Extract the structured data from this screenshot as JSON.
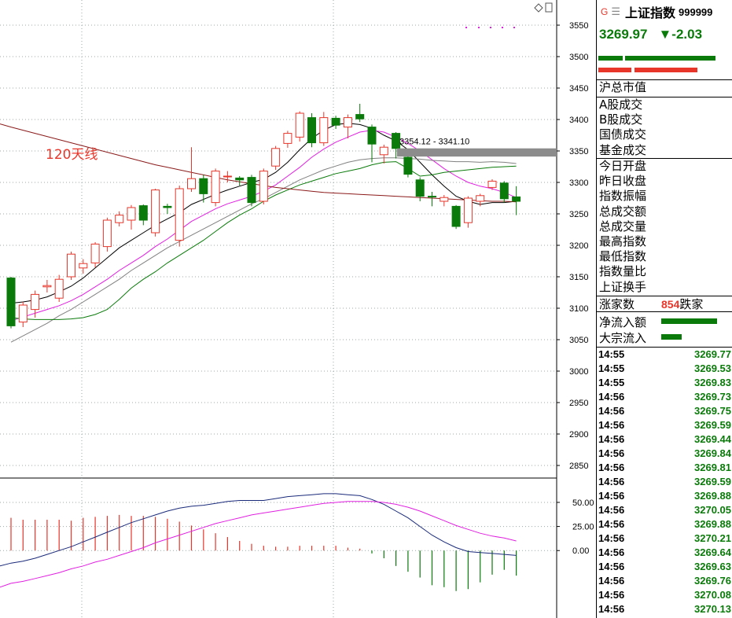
{
  "chart_data": {
    "type": "candlestick",
    "y_axis_ticks": [
      "3550",
      "3500",
      "3450",
      "3400",
      "3350",
      "3300",
      "3250",
      "3200",
      "3150",
      "3100",
      "3050",
      "3000",
      "2950",
      "2900",
      "2850"
    ],
    "ylim": [
      2830,
      3580
    ],
    "ma_label": "120天线",
    "gap_label": "3354.12 - 3341.10",
    "gap_range": [
      3341.1,
      3354.12
    ],
    "candles": [
      {
        "o": 3148,
        "c": 3072,
        "h": 3150,
        "l": 3068
      },
      {
        "o": 3078,
        "c": 3105,
        "h": 3110,
        "l": 3070
      },
      {
        "o": 3098,
        "c": 3122,
        "h": 3128,
        "l": 3085
      },
      {
        "o": 3134,
        "c": 3136,
        "h": 3145,
        "l": 3125
      },
      {
        "o": 3116,
        "c": 3146,
        "h": 3153,
        "l": 3110
      },
      {
        "o": 3150,
        "c": 3186,
        "h": 3190,
        "l": 3145
      },
      {
        "o": 3164,
        "c": 3171,
        "h": 3178,
        "l": 3155
      },
      {
        "o": 3172,
        "c": 3202,
        "h": 3205,
        "l": 3165
      },
      {
        "o": 3198,
        "c": 3240,
        "h": 3244,
        "l": 3190
      },
      {
        "o": 3236,
        "c": 3248,
        "h": 3254,
        "l": 3230
      },
      {
        "o": 3240,
        "c": 3260,
        "h": 3264,
        "l": 3225
      },
      {
        "o": 3263,
        "c": 3240,
        "h": 3265,
        "l": 3232
      },
      {
        "o": 3220,
        "c": 3288,
        "h": 3290,
        "l": 3214
      },
      {
        "o": 3262,
        "c": 3260,
        "h": 3266,
        "l": 3250
      },
      {
        "o": 3208,
        "c": 3290,
        "h": 3295,
        "l": 3198
      },
      {
        "o": 3290,
        "c": 3306,
        "h": 3356,
        "l": 3285
      },
      {
        "o": 3306,
        "c": 3282,
        "h": 3312,
        "l": 3268
      },
      {
        "o": 3268,
        "c": 3318,
        "h": 3322,
        "l": 3262
      },
      {
        "o": 3310,
        "c": 3310,
        "h": 3318,
        "l": 3300
      },
      {
        "o": 3307,
        "c": 3304,
        "h": 3310,
        "l": 3295
      },
      {
        "o": 3308,
        "c": 3268,
        "h": 3312,
        "l": 3262
      },
      {
        "o": 3270,
        "c": 3318,
        "h": 3322,
        "l": 3265
      },
      {
        "o": 3326,
        "c": 3354,
        "h": 3358,
        "l": 3320
      },
      {
        "o": 3362,
        "c": 3378,
        "h": 3382,
        "l": 3355
      },
      {
        "o": 3372,
        "c": 3410,
        "h": 3413,
        "l": 3365
      },
      {
        "o": 3403,
        "c": 3363,
        "h": 3410,
        "l": 3356
      },
      {
        "o": 3363,
        "c": 3403,
        "h": 3412,
        "l": 3358
      },
      {
        "o": 3402,
        "c": 3391,
        "h": 3406,
        "l": 3385
      },
      {
        "o": 3388,
        "c": 3403,
        "h": 3408,
        "l": 3370
      },
      {
        "o": 3408,
        "c": 3401,
        "h": 3425,
        "l": 3396
      },
      {
        "o": 3388,
        "c": 3361,
        "h": 3392,
        "l": 3332
      },
      {
        "o": 3344,
        "c": 3356,
        "h": 3360,
        "l": 3330
      },
      {
        "o": 3378,
        "c": 3354,
        "h": 3380,
        "l": 3338
      },
      {
        "o": 3340,
        "c": 3313,
        "h": 3345,
        "l": 3308
      },
      {
        "o": 3304,
        "c": 3278,
        "h": 3308,
        "l": 3270
      },
      {
        "o": 3278,
        "c": 3277,
        "h": 3285,
        "l": 3262
      },
      {
        "o": 3270,
        "c": 3276,
        "h": 3280,
        "l": 3262
      },
      {
        "o": 3262,
        "c": 3230,
        "h": 3264,
        "l": 3226
      },
      {
        "o": 3236,
        "c": 3275,
        "h": 3278,
        "l": 3228
      },
      {
        "o": 3270,
        "c": 3279,
        "h": 3282,
        "l": 3262
      },
      {
        "o": 3292,
        "c": 3302,
        "h": 3305,
        "l": 3288
      },
      {
        "o": 3299,
        "c": 3274,
        "h": 3302,
        "l": 3268
      },
      {
        "o": 3277,
        "c": 3270,
        "h": 3294,
        "l": 3248
      }
    ],
    "ma_lines": [
      {
        "color": "#000000",
        "values": [
          3108,
          3110,
          3113,
          3118,
          3126,
          3135,
          3148,
          3164,
          3180,
          3196,
          3208,
          3220,
          3232,
          3242,
          3252,
          3265,
          3273,
          3281,
          3288,
          3294,
          3300,
          3305,
          3316,
          3332,
          3352,
          3370,
          3383,
          3392,
          3394,
          3392,
          3386,
          3375,
          3366,
          3352,
          3332,
          3312,
          3294,
          3278,
          3270,
          3265,
          3268,
          3268,
          3270
        ]
      },
      {
        "color": "#e020e0",
        "values": [
          3080,
          3086,
          3092,
          3098,
          3104,
          3112,
          3122,
          3134,
          3146,
          3160,
          3172,
          3184,
          3198,
          3210,
          3224,
          3238,
          3248,
          3258,
          3266,
          3272,
          3278,
          3286,
          3296,
          3310,
          3324,
          3340,
          3353,
          3364,
          3372,
          3380,
          3383,
          3380,
          3372,
          3362,
          3350,
          3336,
          3322,
          3310,
          3300,
          3294,
          3290,
          3284,
          3276
        ]
      },
      {
        "color": "#808080",
        "values": [
          3046,
          3056,
          3066,
          3076,
          3088,
          3098,
          3110,
          3122,
          3134,
          3146,
          3160,
          3172,
          3184,
          3196,
          3206,
          3216,
          3226,
          3236,
          3246,
          3256,
          3266,
          3274,
          3284,
          3294,
          3304,
          3312,
          3320,
          3326,
          3332,
          3336,
          3338,
          3339,
          3339,
          3338,
          3337,
          3335,
          3334,
          3333,
          3333,
          3332,
          3333,
          3332,
          3330
        ]
      },
      {
        "color": "#0a7a0a",
        "values": [
          3085,
          3083,
          3082,
          3082,
          3082,
          3083,
          3085,
          3090,
          3098,
          3114,
          3132,
          3146,
          3158,
          3172,
          3184,
          3196,
          3208,
          3222,
          3236,
          3248,
          3258,
          3270,
          3280,
          3288,
          3296,
          3302,
          3308,
          3314,
          3318,
          3322,
          3328,
          3332,
          3333,
          3322,
          3310,
          3312,
          3316,
          3318,
          3320,
          3322,
          3324,
          3325,
          3326
        ]
      },
      {
        "color": "#8b1a1a",
        "values": [
          3388,
          3383,
          3378,
          3373,
          3368,
          3363,
          3358,
          3353,
          3348,
          3343,
          3338,
          3333,
          3328,
          3324,
          3320,
          3316,
          3312,
          3308,
          3304,
          3301,
          3298,
          3295,
          3292,
          3290,
          3288,
          3286,
          3284,
          3283,
          3282,
          3281,
          3280,
          3279,
          3278,
          3277,
          3276,
          3275,
          3274,
          3273,
          3272,
          3271,
          3270,
          3270,
          3269
        ]
      }
    ],
    "macd": {
      "y_axis_ticks": [
        "50.00",
        "25.00",
        "0.00"
      ],
      "ylim": [
        -70,
        72
      ],
      "histogram": [
        34,
        32,
        32,
        32,
        32,
        31,
        34,
        35,
        36,
        37,
        36,
        36,
        35,
        33,
        30,
        26,
        22,
        18,
        14,
        10,
        7,
        5,
        4,
        4,
        5,
        5,
        5,
        5,
        3,
        2,
        -3,
        -8,
        -16,
        -22,
        -28,
        -36,
        -38,
        -42,
        -40,
        -33,
        -25,
        -20,
        -26
      ],
      "dif": [
        -13,
        -11,
        -8,
        -4,
        0,
        4,
        9,
        14,
        19,
        24,
        29,
        33,
        37,
        41,
        44,
        46,
        47,
        49,
        51,
        52,
        52,
        52,
        54,
        56,
        57,
        58,
        59,
        59,
        58,
        57,
        53,
        48,
        41,
        34,
        25,
        16,
        9,
        3,
        -1,
        -2,
        -3,
        -4,
        -5
      ],
      "dea": [
        -34,
        -32,
        -29,
        -26,
        -23,
        -19,
        -16,
        -12,
        -9,
        -5,
        -1,
        3,
        8,
        12,
        16,
        20,
        24,
        28,
        31,
        34,
        37,
        39,
        41,
        43,
        45,
        47,
        49,
        50,
        51,
        51,
        51,
        50,
        48,
        45,
        41,
        36,
        31,
        26,
        22,
        18,
        15,
        13,
        10
      ]
    }
  },
  "panel": {
    "g_label": "G",
    "menu_icon": "menu-icon",
    "title": "上证指数",
    "code": "999999",
    "price": "3269.97",
    "change": "▼-2.03",
    "fields_a": [
      "沪总市值"
    ],
    "fields_b": [
      "A股成交",
      "B股成交",
      "国债成交",
      "基金成交"
    ],
    "fields_c": [
      "今日开盘",
      "昨日收盘",
      "指数振幅",
      "总成交额",
      "总成交量",
      "最高指数",
      "最低指数",
      "指数量比",
      "上证换手"
    ],
    "advance_label": "涨家数",
    "advance_count": "854",
    "decline_label": "跌家",
    "flow_in_label": "净流入额",
    "block_in_label": "大宗流入",
    "ticks": [
      {
        "t": "14:55",
        "p": "3269.77"
      },
      {
        "t": "14:55",
        "p": "3269.53"
      },
      {
        "t": "14:55",
        "p": "3269.83"
      },
      {
        "t": "14:56",
        "p": "3269.73"
      },
      {
        "t": "14:56",
        "p": "3269.75"
      },
      {
        "t": "14:56",
        "p": "3269.59"
      },
      {
        "t": "14:56",
        "p": "3269.44"
      },
      {
        "t": "14:56",
        "p": "3269.84"
      },
      {
        "t": "14:56",
        "p": "3269.81"
      },
      {
        "t": "14:56",
        "p": "3269.59"
      },
      {
        "t": "14:56",
        "p": "3269.88"
      },
      {
        "t": "14:56",
        "p": "3270.05"
      },
      {
        "t": "14:56",
        "p": "3269.88"
      },
      {
        "t": "14:56",
        "p": "3270.21"
      },
      {
        "t": "14:56",
        "p": "3269.64"
      },
      {
        "t": "14:56",
        "p": "3269.63"
      },
      {
        "t": "14:56",
        "p": "3269.76"
      },
      {
        "t": "14:56",
        "p": "3270.08"
      },
      {
        "t": "14:56",
        "p": "3270.13"
      }
    ],
    "colors": {
      "up": "#e8362a",
      "down": "#0a7a0a"
    }
  }
}
